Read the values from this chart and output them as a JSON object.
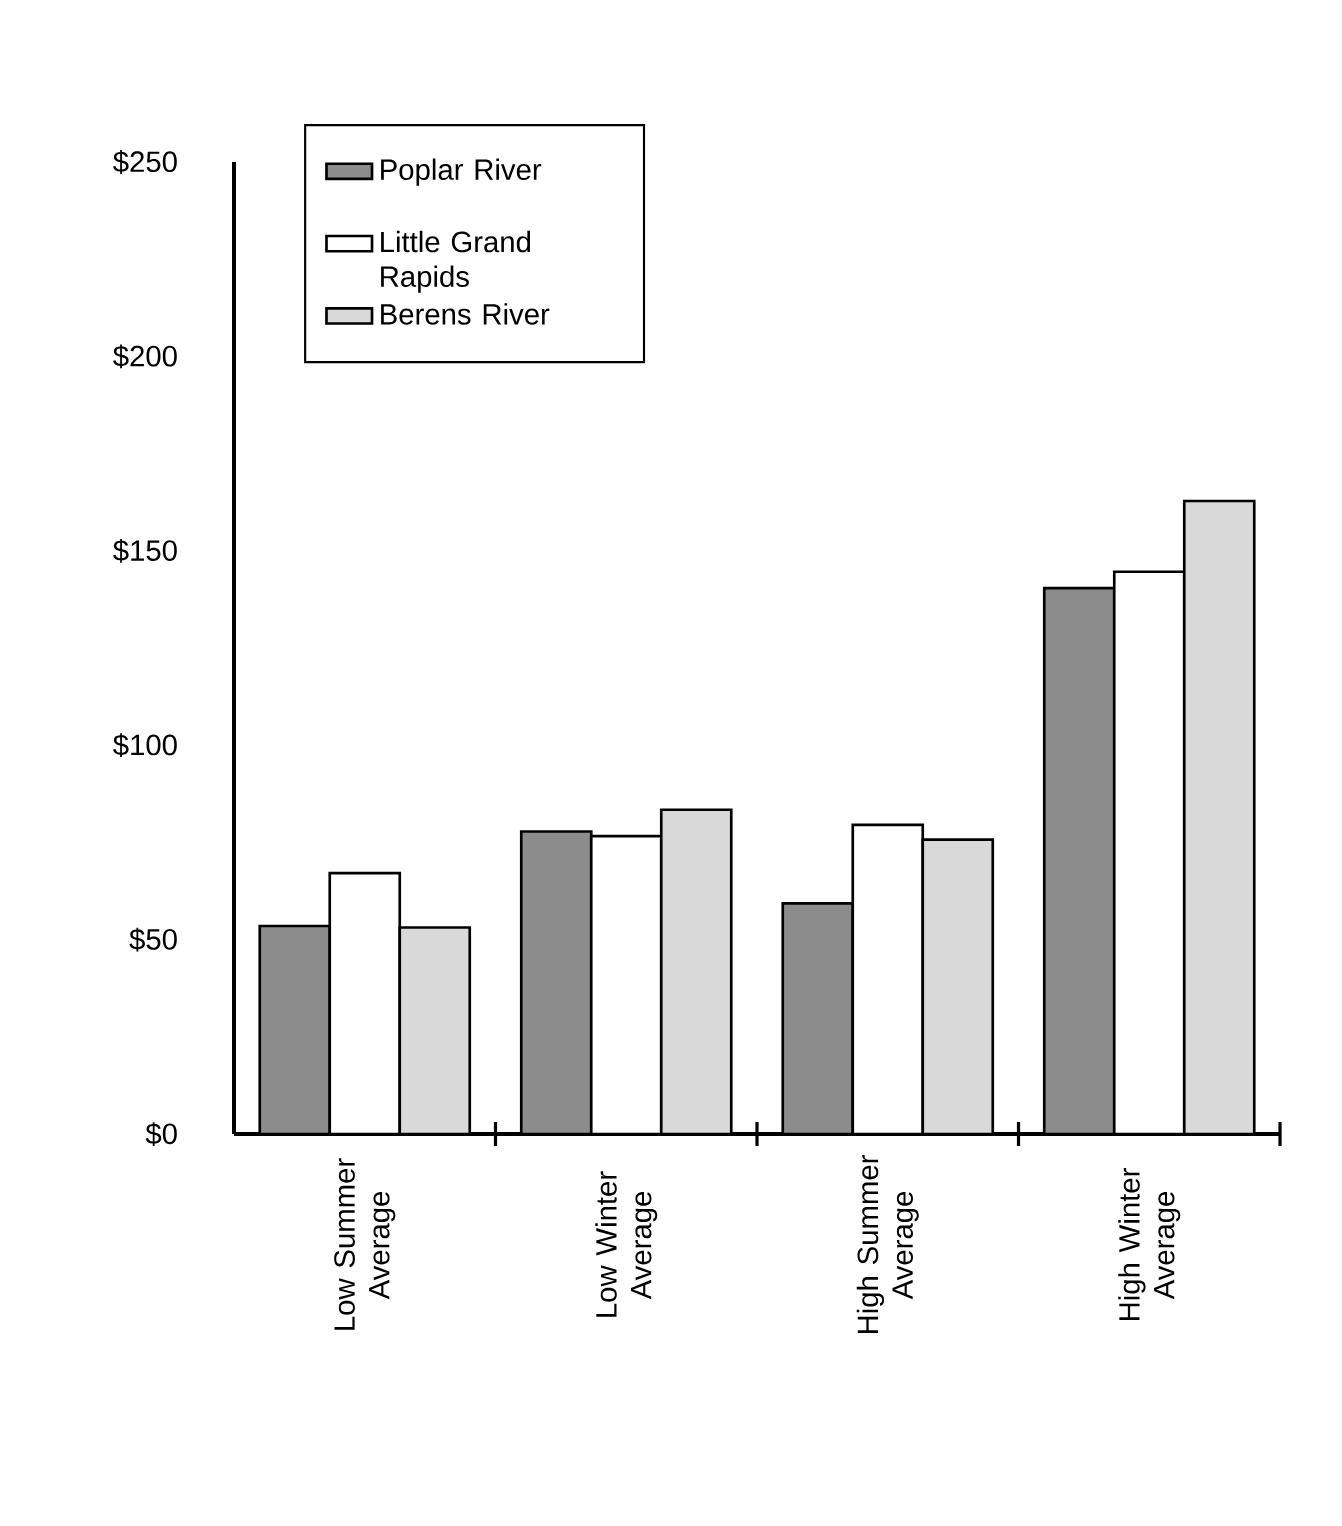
{
  "chart_data": {
    "type": "bar",
    "categories": [
      "Low Summer Average",
      "Low Winter Average",
      "High Summer Average",
      "High Winter Average"
    ],
    "series": [
      {
        "name": "Poplar River",
        "color": "#8c8c8c",
        "values": [
          53.5,
          77.8,
          59.3,
          140.4
        ]
      },
      {
        "name": "Little Grand Rapids",
        "color": "#ffffff",
        "values": [
          67.1,
          76.6,
          79.5,
          144.6
        ]
      },
      {
        "name": "Berens River",
        "color": "#d9d9d9",
        "values": [
          53.1,
          83.4,
          75.7,
          162.8
        ]
      }
    ],
    "ylim": [
      0,
      250
    ],
    "yticks": [
      {
        "value": 0,
        "label": "$0"
      },
      {
        "value": 50,
        "label": "$50"
      },
      {
        "value": 100,
        "label": "$100"
      },
      {
        "value": 150,
        "label": "$150"
      },
      {
        "value": 200,
        "label": "$200"
      },
      {
        "value": 250,
        "label": "$250"
      }
    ],
    "grid": false,
    "legend": "top left"
  }
}
